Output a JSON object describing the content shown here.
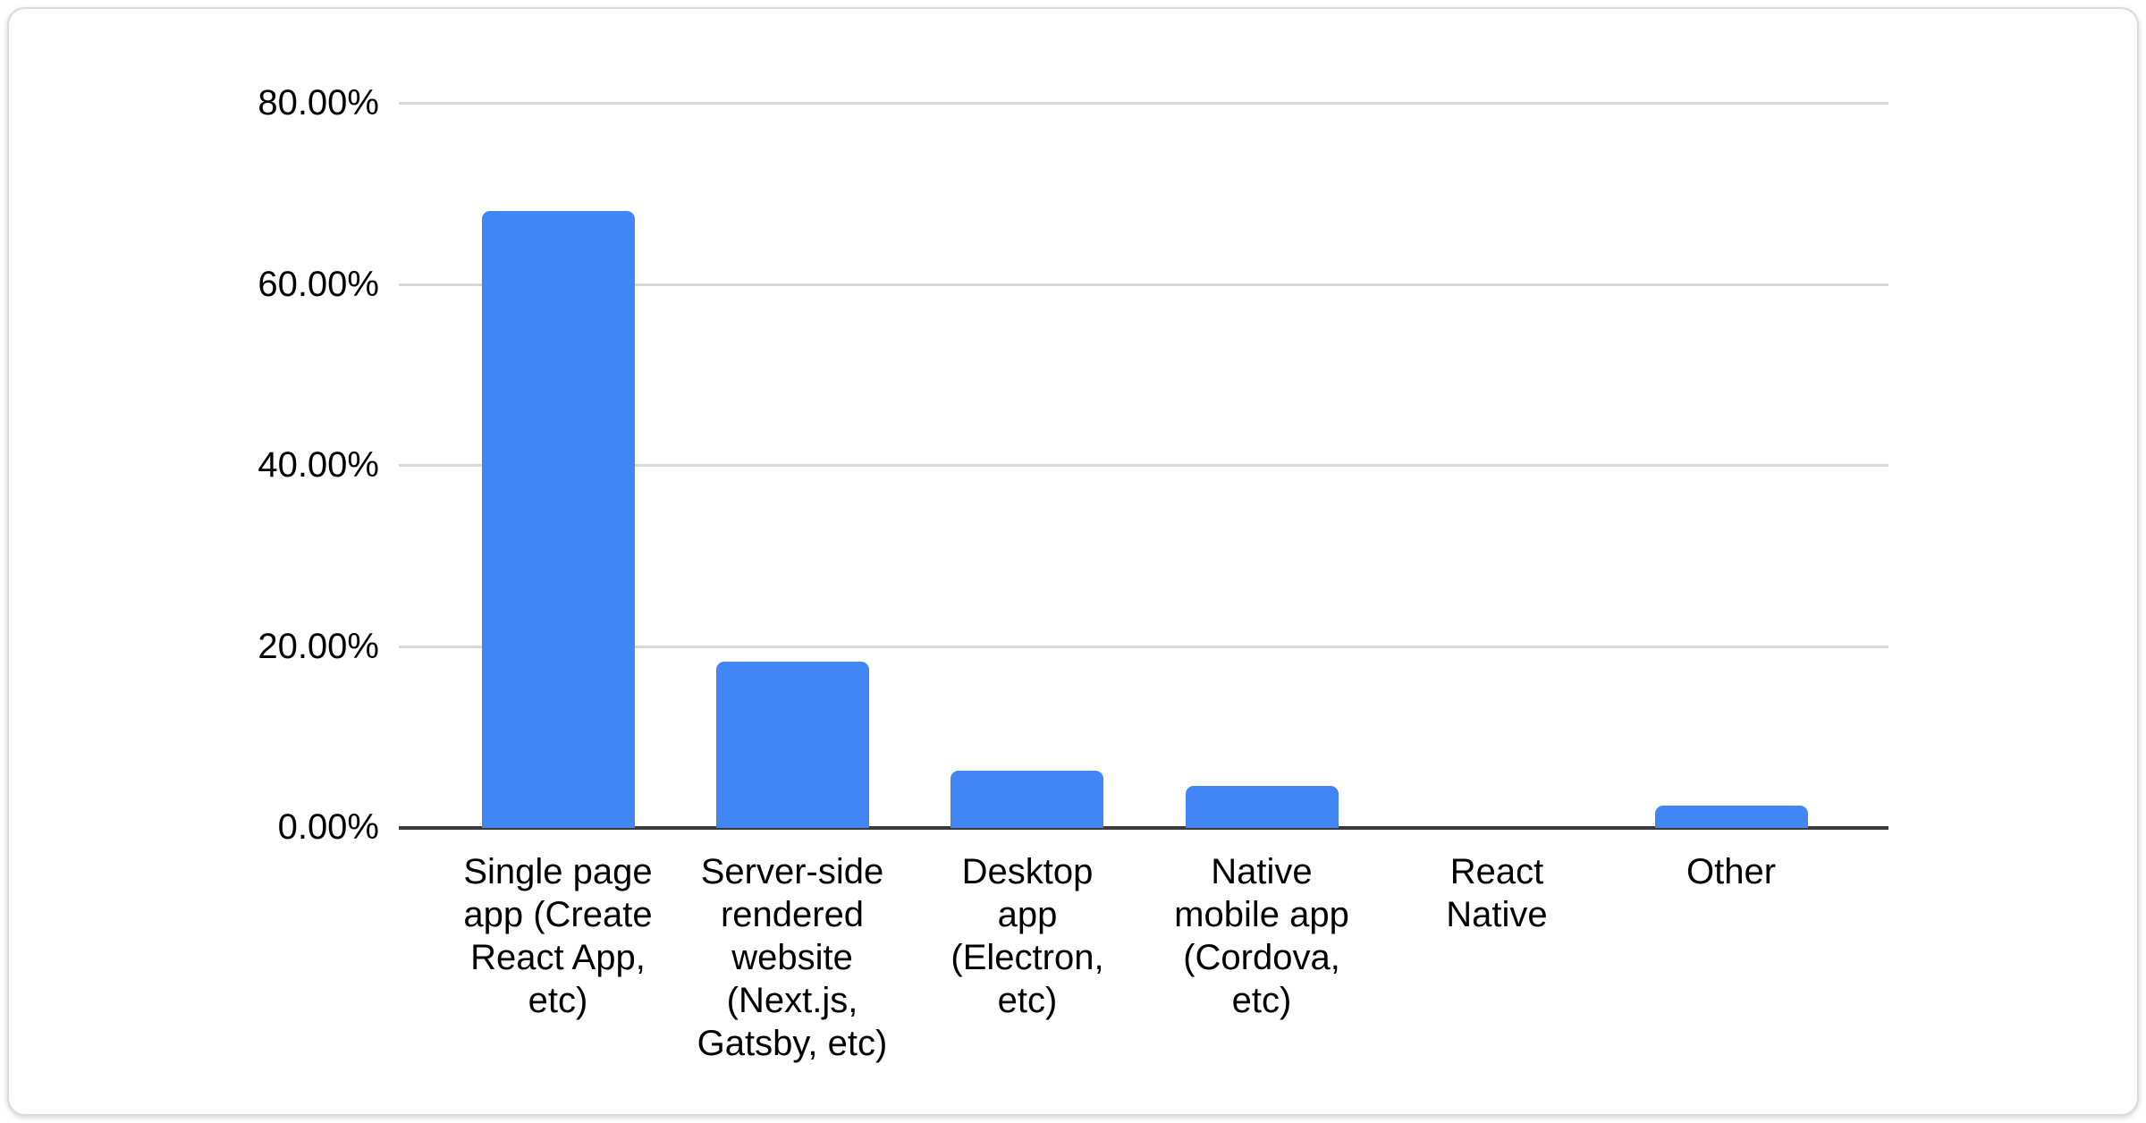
{
  "chart_data": {
    "type": "bar",
    "title": "",
    "xlabel": "",
    "ylabel": "",
    "categories": [
      "Single page app (Create React App, etc)",
      "Server-side rendered website (Next.js, Gatsby, etc)",
      "Desktop app (Electron, etc)",
      "Native mobile app (Cordova, etc)",
      "React Native",
      "Other"
    ],
    "category_lines": [
      [
        "Single page",
        "app (Create",
        "React App,",
        "etc)"
      ],
      [
        "Server-side",
        "rendered",
        "website",
        "(Next.js,",
        "Gatsby, etc)"
      ],
      [
        "Desktop",
        "app",
        "(Electron,",
        "etc)"
      ],
      [
        "Native",
        "mobile app",
        "(Cordova,",
        "etc)"
      ],
      [
        "React",
        "Native"
      ],
      [
        "Other"
      ]
    ],
    "values": [
      68.1,
      18.4,
      6.3,
      4.6,
      0,
      2.5
    ],
    "value_unit": "%",
    "ylim": [
      0,
      80
    ],
    "y_ticks": [
      {
        "value": 80,
        "label": "80.00%"
      },
      {
        "value": 60,
        "label": "60.00%"
      },
      {
        "value": 40,
        "label": "40.00%"
      },
      {
        "value": 20,
        "label": "20.00%"
      },
      {
        "value": 0,
        "label": "0.00%"
      }
    ],
    "grid": true,
    "legend": "none",
    "colors": {
      "bar": "#4285f4",
      "gridline": "#d9d9d9",
      "baseline": "#3a3a3a",
      "text": "#000000",
      "card_background": "#ffffff",
      "card_border": "#d8dbdf"
    }
  }
}
